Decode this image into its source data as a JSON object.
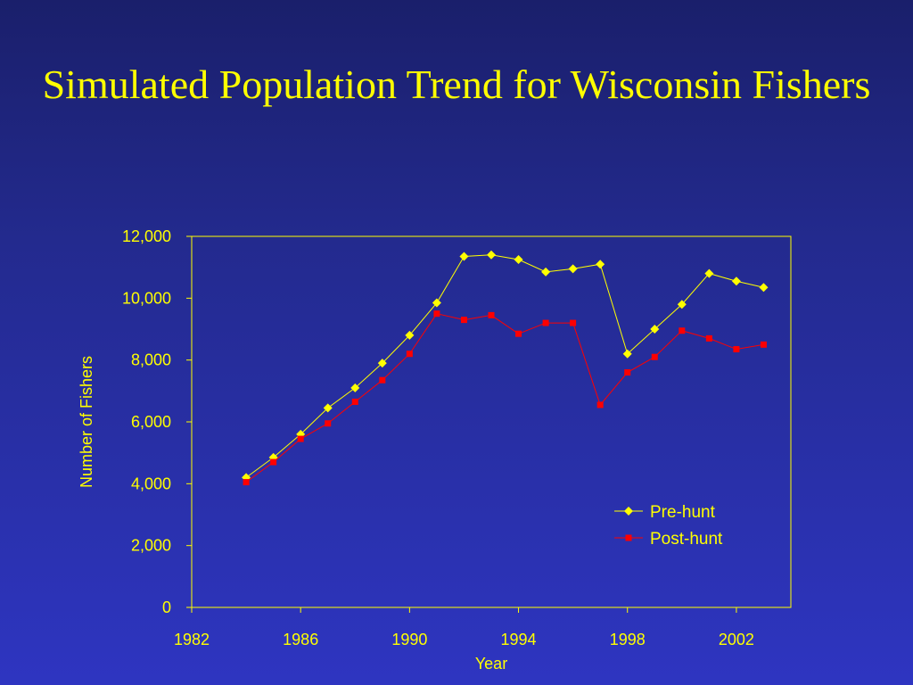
{
  "slide": {
    "title": "Simulated Population Trend for Wisconsin Fishers"
  },
  "colors": {
    "axis": "#ffff00",
    "pre_hunt": "#ffff00",
    "post_hunt": "#ff0000"
  },
  "chart_data": {
    "type": "line",
    "title": "",
    "xlabel": "Year",
    "ylabel": "Number of Fishers",
    "xlim": [
      1982,
      2004
    ],
    "ylim": [
      0,
      12000
    ],
    "x_ticks": [
      1982,
      1986,
      1990,
      1994,
      1998,
      2002
    ],
    "y_ticks": [
      0,
      2000,
      4000,
      6000,
      8000,
      10000,
      12000
    ],
    "y_tick_labels": [
      "0",
      "2,000",
      "4,000",
      "6,000",
      "8,000",
      "10,000",
      "12,000"
    ],
    "grid": false,
    "legend_position": "lower-right",
    "x": [
      1984,
      1985,
      1986,
      1987,
      1988,
      1989,
      1990,
      1991,
      1992,
      1993,
      1994,
      1995,
      1996,
      1997,
      1998,
      1999,
      2000,
      2001,
      2002,
      2003
    ],
    "series": [
      {
        "name": "Pre-hunt",
        "marker": "diamond",
        "color": "#ffff00",
        "values": [
          4200,
          4850,
          5600,
          6450,
          7100,
          7900,
          8800,
          9850,
          11350,
          11400,
          11250,
          10850,
          10950,
          11100,
          8200,
          9000,
          9800,
          10800,
          10550,
          10350
        ]
      },
      {
        "name": "Post-hunt",
        "marker": "square",
        "color": "#ff0000",
        "values": [
          4050,
          4700,
          5450,
          5950,
          6650,
          7350,
          8200,
          9500,
          9300,
          9450,
          8850,
          9200,
          9200,
          6550,
          7600,
          8100,
          8950,
          8700,
          8350,
          8500
        ]
      }
    ]
  }
}
